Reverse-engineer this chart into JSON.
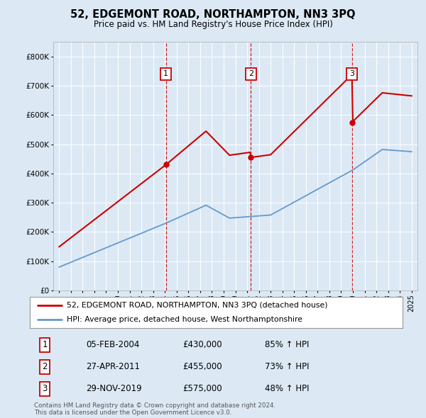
{
  "title": "52, EDGEMONT ROAD, NORTHAMPTON, NN3 3PQ",
  "subtitle": "Price paid vs. HM Land Registry's House Price Index (HPI)",
  "bg_color": "#dce9f5",
  "transactions": [
    {
      "year": 2004.092,
      "price": 430000,
      "label": "1",
      "date_str": "05-FEB-2004",
      "pct": "85% ↑ HPI"
    },
    {
      "year": 2011.325,
      "price": 455000,
      "label": "2",
      "date_str": "27-APR-2011",
      "pct": "73% ↑ HPI"
    },
    {
      "year": 2019.917,
      "price": 575000,
      "label": "3",
      "date_str": "29-NOV-2019",
      "pct": "48% ↑ HPI"
    }
  ],
  "legend_line1": "52, EDGEMONT ROAD, NORTHAMPTON, NN3 3PQ (detached house)",
  "legend_line2": "HPI: Average price, detached house, West Northamptonshire",
  "footer": "Contains HM Land Registry data © Crown copyright and database right 2024.\nThis data is licensed under the Open Government Licence v3.0.",
  "ylim": [
    0,
    850000
  ],
  "yticks": [
    0,
    100000,
    200000,
    300000,
    400000,
    500000,
    600000,
    700000,
    800000
  ],
  "price_line_color": "#cc0000",
  "hpi_line_color": "#6699cc",
  "dashed_line_color": "#cc0000",
  "box_color": "#cc0000",
  "grid_color": "#ffffff",
  "xlim_min": 1994.5,
  "xlim_max": 2025.5,
  "xtick_start": 1995,
  "xtick_end": 2025
}
